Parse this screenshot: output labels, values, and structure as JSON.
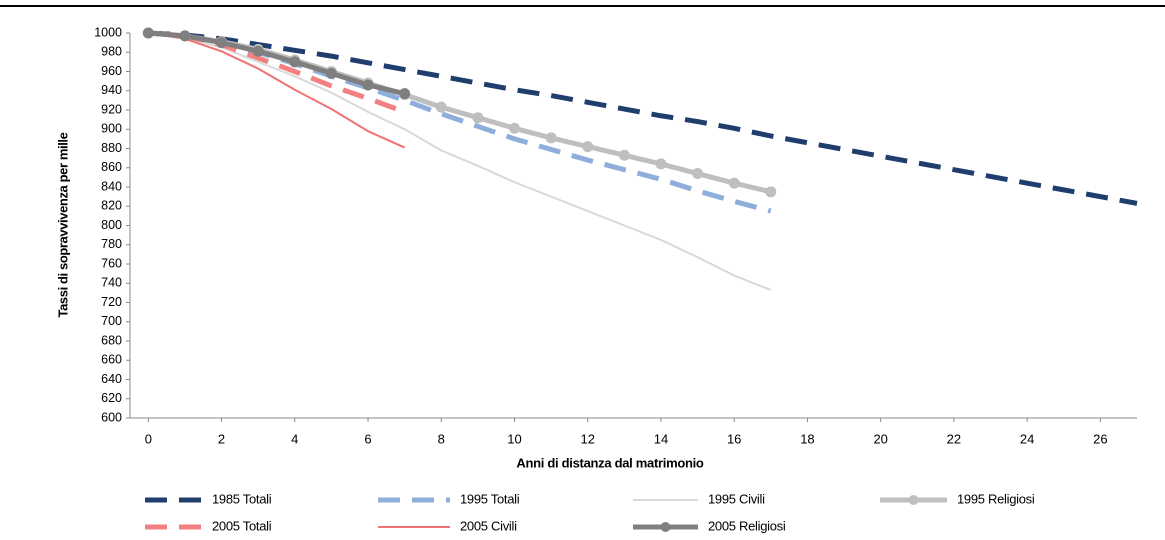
{
  "chart_data": {
    "type": "line",
    "ylabel": "Tassi di sopravvivenza per mille",
    "xlabel": "Anni di distanza dal matrimonio",
    "x": [
      0,
      1,
      2,
      3,
      4,
      5,
      6,
      7,
      8,
      9,
      10,
      11,
      12,
      13,
      14,
      15,
      16,
      17,
      18,
      19,
      20,
      21,
      22,
      23,
      24,
      25,
      26,
      27
    ],
    "xlim": [
      -0.5,
      27
    ],
    "xticks": [
      0,
      2,
      4,
      6,
      8,
      10,
      12,
      14,
      16,
      18,
      20,
      22,
      24,
      26
    ],
    "ylim": [
      600,
      1000
    ],
    "yticks": [
      600,
      620,
      640,
      660,
      680,
      700,
      720,
      740,
      760,
      780,
      800,
      820,
      840,
      860,
      880,
      900,
      920,
      940,
      960,
      980,
      1000
    ],
    "series": [
      {
        "name": "1985 Totali",
        "color": "#1f3e6e",
        "width": 5,
        "dash": true,
        "marker": false,
        "values": [
          1000,
          998,
          994,
          988,
          982,
          976,
          969,
          962,
          955,
          948,
          941,
          935,
          928,
          921,
          914,
          908,
          901,
          893,
          886,
          879,
          872,
          865,
          858,
          851,
          844,
          837,
          830,
          823
        ]
      },
      {
        "name": "1995 Totali",
        "color": "#8eaedb",
        "width": 5,
        "dash": true,
        "marker": false,
        "values": [
          1000,
          997,
          990,
          980,
          968,
          955,
          943,
          930,
          916,
          903,
          890,
          879,
          868,
          858,
          848,
          836,
          825,
          815,
          null,
          null,
          null,
          null,
          null,
          null,
          null,
          null,
          null,
          null
        ]
      },
      {
        "name": "1995 Civili",
        "color": "#d9d9d9",
        "width": 2,
        "dash": false,
        "marker": false,
        "values": [
          1000,
          995,
          985,
          970,
          955,
          938,
          918,
          900,
          878,
          862,
          845,
          830,
          815,
          800,
          785,
          767,
          748,
          733,
          null,
          null,
          null,
          null,
          null,
          null,
          null,
          null,
          null,
          null
        ]
      },
      {
        "name": "1995 Religiosi",
        "color": "#bfbfbf",
        "width": 5,
        "dash": false,
        "marker": true,
        "values": [
          1000,
          997,
          991,
          983,
          972,
          960,
          948,
          936,
          923,
          912,
          901,
          891,
          882,
          873,
          864,
          854,
          844,
          835,
          null,
          null,
          null,
          null,
          null,
          null,
          null,
          null,
          null,
          null
        ]
      },
      {
        "name": "2005 Totali",
        "color": "#f28080",
        "width": 5,
        "dash": true,
        "marker": false,
        "values": [
          1000,
          997,
          988,
          974,
          960,
          945,
          932,
          918,
          null,
          null,
          null,
          null,
          null,
          null,
          null,
          null,
          null,
          null,
          null,
          null,
          null,
          null,
          null,
          null,
          null,
          null,
          null,
          null
        ]
      },
      {
        "name": "2005 Civili",
        "color": "#f07272",
        "width": 2,
        "dash": false,
        "marker": false,
        "values": [
          1000,
          994,
          981,
          963,
          941,
          921,
          898,
          881,
          null,
          null,
          null,
          null,
          null,
          null,
          null,
          null,
          null,
          null,
          null,
          null,
          null,
          null,
          null,
          null,
          null,
          null,
          null,
          null
        ]
      },
      {
        "name": "2005 Religiosi",
        "color": "#7f7f7f",
        "width": 5,
        "dash": false,
        "marker": true,
        "values": [
          1000,
          997,
          990,
          981,
          970,
          958,
          946,
          937,
          null,
          null,
          null,
          null,
          null,
          null,
          null,
          null,
          null,
          null,
          null,
          null,
          null,
          null,
          null,
          null,
          null,
          null,
          null,
          null
        ]
      }
    ]
  }
}
